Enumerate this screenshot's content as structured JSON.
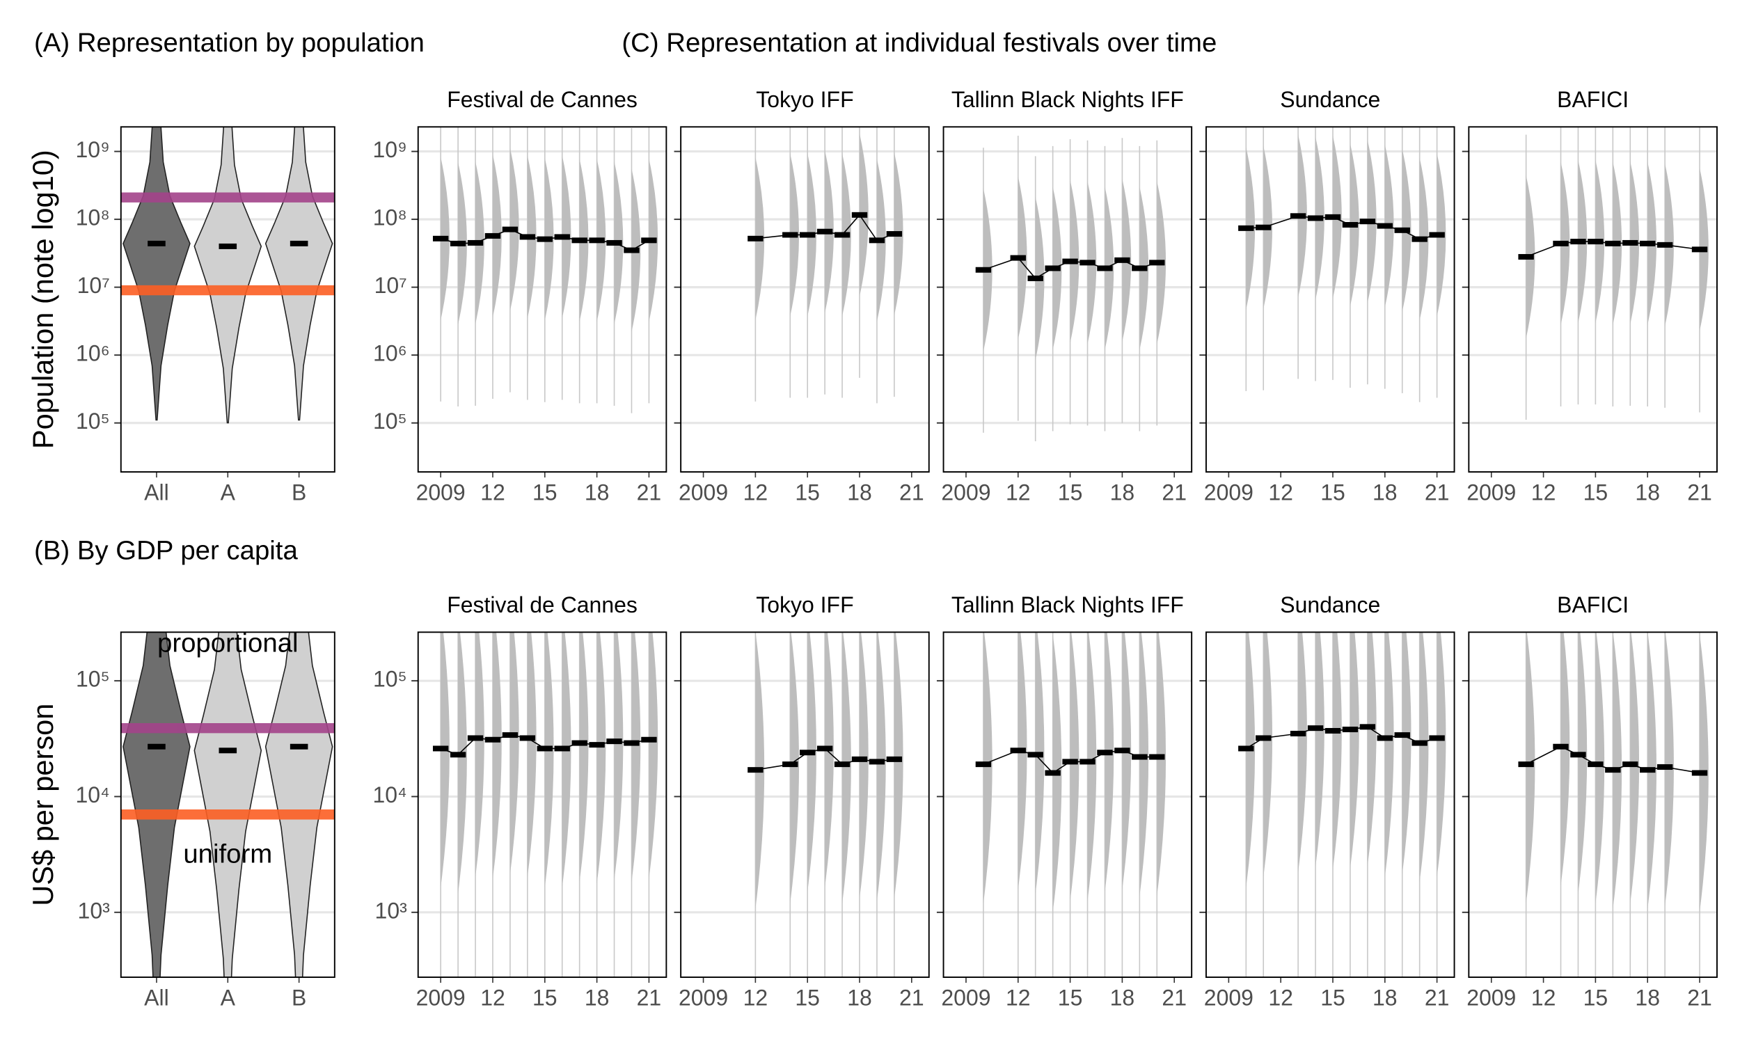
{
  "panel_labels": [
    "(A) Representation by population",
    "(C) Representation at individual festivals over time",
    "(B) By GDP per capita"
  ],
  "chart_data": [
    {
      "type": "violin",
      "ylabel": "Population (note log10)",
      "categories": [
        "All",
        "A",
        "B"
      ],
      "values": [
        44000000,
        40000000,
        44000000
      ],
      "log": true,
      "ylim": [
        19000,
        2300000000
      ],
      "yticks": [
        {
          "value": 1000000000,
          "label": "10⁹"
        },
        {
          "value": 100000000,
          "label": "10⁸"
        },
        {
          "value": 10000000,
          "label": "10⁷"
        },
        {
          "value": 1000000,
          "label": "10⁶"
        },
        {
          "value": 100000,
          "label": "10⁵"
        }
      ],
      "show_ytick_labels": true,
      "grid": true,
      "reference_lines": [
        {
          "value": 210000000,
          "color": "#a3438a"
        },
        {
          "value": 9000000,
          "color": "#fc5f24"
        }
      ]
    },
    {
      "type": "line",
      "title": "Festival de Cannes",
      "x": [
        2009,
        2010,
        2011,
        2012,
        2013,
        2014,
        2015,
        2016,
        2017,
        2018,
        2019,
        2020,
        2021
      ],
      "values": [
        52000000,
        44000000,
        45000000,
        57000000,
        71000000,
        55000000,
        51000000,
        55000000,
        49000000,
        49000000,
        45000000,
        35000000,
        49000000
      ],
      "log": true,
      "xlim": [
        2007.7,
        2022
      ],
      "xticks": [
        {
          "value": 2009,
          "label": "2009"
        },
        {
          "value": 2012,
          "label": "12"
        },
        {
          "value": 2015,
          "label": "15"
        },
        {
          "value": 2018,
          "label": "18"
        },
        {
          "value": 2021,
          "label": "21"
        }
      ],
      "ylim": [
        19000,
        2300000000
      ],
      "yticks": [
        {
          "value": 1000000000,
          "label": "10⁹"
        },
        {
          "value": 100000000,
          "label": "10⁸"
        },
        {
          "value": 10000000,
          "label": "10⁷"
        },
        {
          "value": 1000000,
          "label": "10⁶"
        },
        {
          "value": 100000,
          "label": "10⁵"
        }
      ],
      "show_ytick_labels": true,
      "grid": true
    },
    {
      "type": "line",
      "title": "Tokyo IFF",
      "x": [
        2012,
        2014,
        2015,
        2016,
        2017,
        2018,
        2019,
        2020
      ],
      "values": [
        52000000,
        59000000,
        59000000,
        66000000,
        59000000,
        116000000,
        49000000,
        61000000
      ],
      "log": true,
      "xlim": [
        2007.7,
        2022
      ],
      "xticks": [
        {
          "value": 2009,
          "label": "2009"
        },
        {
          "value": 2012,
          "label": "12"
        },
        {
          "value": 2015,
          "label": "15"
        },
        {
          "value": 2018,
          "label": "18"
        },
        {
          "value": 2021,
          "label": "21"
        }
      ],
      "ylim": [
        19000,
        2300000000
      ],
      "yticks": [
        1000000000,
        100000000,
        10000000,
        1000000,
        100000
      ],
      "show_ytick_labels": false,
      "grid": true
    },
    {
      "type": "line",
      "title": "Tallinn Black Nights IFF",
      "x": [
        2010,
        2012,
        2013,
        2014,
        2015,
        2016,
        2017,
        2018,
        2019,
        2020
      ],
      "values": [
        18000000,
        27000000,
        13500000,
        19000000,
        24000000,
        23000000,
        19000000,
        25000000,
        19000000,
        23000000
      ],
      "log": true,
      "xlim": [
        2007.7,
        2022
      ],
      "xticks": [
        {
          "value": 2009,
          "label": "2009"
        },
        {
          "value": 2012,
          "label": "12"
        },
        {
          "value": 2015,
          "label": "15"
        },
        {
          "value": 2018,
          "label": "18"
        },
        {
          "value": 2021,
          "label": "21"
        }
      ],
      "ylim": [
        19000,
        2300000000
      ],
      "yticks": [
        1000000000,
        100000000,
        10000000,
        1000000,
        100000
      ],
      "show_ytick_labels": false,
      "grid": true
    },
    {
      "type": "line",
      "title": "Sundance",
      "x": [
        2010,
        2011,
        2013,
        2014,
        2015,
        2016,
        2017,
        2018,
        2019,
        2020,
        2021
      ],
      "values": [
        74000000,
        76000000,
        112000000,
        104000000,
        108000000,
        83000000,
        93000000,
        80000000,
        69000000,
        51000000,
        59000000
      ],
      "log": true,
      "xlim": [
        2007.7,
        2022
      ],
      "xticks": [
        {
          "value": 2009,
          "label": "2009"
        },
        {
          "value": 2012,
          "label": "12"
        },
        {
          "value": 2015,
          "label": "15"
        },
        {
          "value": 2018,
          "label": "18"
        },
        {
          "value": 2021,
          "label": "21"
        }
      ],
      "ylim": [
        19000,
        2300000000
      ],
      "yticks": [
        1000000000,
        100000000,
        10000000,
        1000000,
        100000
      ],
      "show_ytick_labels": false,
      "grid": true
    },
    {
      "type": "line",
      "title": "BAFICI",
      "x": [
        2011,
        2013,
        2014,
        2015,
        2016,
        2017,
        2018,
        2019,
        2021
      ],
      "values": [
        28000000,
        44000000,
        47000000,
        47000000,
        44000000,
        45000000,
        44000000,
        42000000,
        36000000
      ],
      "log": true,
      "xlim": [
        2007.7,
        2022
      ],
      "xticks": [
        {
          "value": 2009,
          "label": "2009"
        },
        {
          "value": 2012,
          "label": "12"
        },
        {
          "value": 2015,
          "label": "15"
        },
        {
          "value": 2018,
          "label": "18"
        },
        {
          "value": 2021,
          "label": "21"
        }
      ],
      "ylim": [
        19000,
        2300000000
      ],
      "yticks": [
        1000000000,
        100000000,
        10000000,
        1000000,
        100000
      ],
      "show_ytick_labels": false,
      "grid": true
    },
    {
      "type": "violin",
      "ylabel": "US$ per person",
      "categories": [
        "All",
        "A",
        "B"
      ],
      "values": [
        27000,
        25000,
        27000
      ],
      "log": true,
      "ylim": [
        275,
        263000
      ],
      "yticks": [
        {
          "value": 100000,
          "label": "10⁵"
        },
        {
          "value": 10000,
          "label": "10⁴"
        },
        {
          "value": 1000,
          "label": "10³"
        }
      ],
      "show_ytick_labels": true,
      "grid": true,
      "reference_lines": [
        {
          "value": 39000,
          "color": "#a3438a",
          "label": "proportional",
          "label_color": "#8e1e8e"
        },
        {
          "value": 7000,
          "color": "#fc5f24",
          "label": "uniform",
          "label_color": "#f4511e"
        }
      ]
    },
    {
      "type": "line",
      "title": "Festival de Cannes",
      "x": [
        2009,
        2010,
        2011,
        2012,
        2013,
        2014,
        2015,
        2016,
        2017,
        2018,
        2019,
        2020,
        2021
      ],
      "values": [
        26000,
        23000,
        32000,
        31000,
        34000,
        32000,
        26000,
        26000,
        29000,
        28000,
        30000,
        29000,
        31000
      ],
      "log": true,
      "xlim": [
        2007.7,
        2022
      ],
      "xticks": [
        {
          "value": 2009,
          "label": "2009"
        },
        {
          "value": 2012,
          "label": "12"
        },
        {
          "value": 2015,
          "label": "15"
        },
        {
          "value": 2018,
          "label": "18"
        },
        {
          "value": 2021,
          "label": "21"
        }
      ],
      "ylim": [
        275,
        263000
      ],
      "yticks": [
        {
          "value": 100000,
          "label": "10⁵"
        },
        {
          "value": 10000,
          "label": "10⁴"
        },
        {
          "value": 1000,
          "label": "10³"
        }
      ],
      "show_ytick_labels": true,
      "grid": true
    },
    {
      "type": "line",
      "title": "Tokyo IFF",
      "x": [
        2012,
        2014,
        2015,
        2016,
        2017,
        2018,
        2019,
        2020
      ],
      "values": [
        17000,
        19000,
        24000,
        26000,
        19000,
        21000,
        20000,
        21000
      ],
      "log": true,
      "xlim": [
        2007.7,
        2022
      ],
      "xticks": [
        {
          "value": 2009,
          "label": "2009"
        },
        {
          "value": 2012,
          "label": "12"
        },
        {
          "value": 2015,
          "label": "15"
        },
        {
          "value": 2018,
          "label": "18"
        },
        {
          "value": 2021,
          "label": "21"
        }
      ],
      "ylim": [
        275,
        263000
      ],
      "yticks": [
        100000,
        10000,
        1000
      ],
      "show_ytick_labels": false,
      "grid": true
    },
    {
      "type": "line",
      "title": "Tallinn Black Nights IFF",
      "x": [
        2010,
        2012,
        2013,
        2014,
        2015,
        2016,
        2017,
        2018,
        2019,
        2020
      ],
      "values": [
        19000,
        25000,
        23000,
        16000,
        20000,
        20000,
        24000,
        25000,
        22000,
        22000
      ],
      "log": true,
      "xlim": [
        2007.7,
        2022
      ],
      "xticks": [
        {
          "value": 2009,
          "label": "2009"
        },
        {
          "value": 2012,
          "label": "12"
        },
        {
          "value": 2015,
          "label": "15"
        },
        {
          "value": 2018,
          "label": "18"
        },
        {
          "value": 2021,
          "label": "21"
        }
      ],
      "ylim": [
        275,
        263000
      ],
      "yticks": [
        100000,
        10000,
        1000
      ],
      "show_ytick_labels": false,
      "grid": true
    },
    {
      "type": "line",
      "title": "Sundance",
      "x": [
        2010,
        2011,
        2013,
        2014,
        2015,
        2016,
        2017,
        2018,
        2019,
        2020,
        2021
      ],
      "values": [
        26000,
        32000,
        35000,
        39000,
        37000,
        38000,
        40000,
        32000,
        34000,
        29000,
        32000
      ],
      "log": true,
      "xlim": [
        2007.7,
        2022
      ],
      "xticks": [
        {
          "value": 2009,
          "label": "2009"
        },
        {
          "value": 2012,
          "label": "12"
        },
        {
          "value": 2015,
          "label": "15"
        },
        {
          "value": 2018,
          "label": "18"
        },
        {
          "value": 2021,
          "label": "21"
        }
      ],
      "ylim": [
        275,
        263000
      ],
      "yticks": [
        100000,
        10000,
        1000
      ],
      "show_ytick_labels": false,
      "grid": true
    },
    {
      "type": "line",
      "title": "BAFICI",
      "x": [
        2011,
        2013,
        2014,
        2015,
        2016,
        2017,
        2018,
        2019,
        2021
      ],
      "values": [
        19000,
        27000,
        23000,
        19000,
        17000,
        19000,
        17000,
        18000,
        16000
      ],
      "log": true,
      "xlim": [
        2007.7,
        2022
      ],
      "xticks": [
        {
          "value": 2009,
          "label": "2009"
        },
        {
          "value": 2012,
          "label": "12"
        },
        {
          "value": 2015,
          "label": "15"
        },
        {
          "value": 2018,
          "label": "18"
        },
        {
          "value": 2021,
          "label": "21"
        }
      ],
      "ylim": [
        275,
        263000
      ],
      "yticks": [
        100000,
        10000,
        1000
      ],
      "show_ytick_labels": false,
      "grid": true
    }
  ]
}
